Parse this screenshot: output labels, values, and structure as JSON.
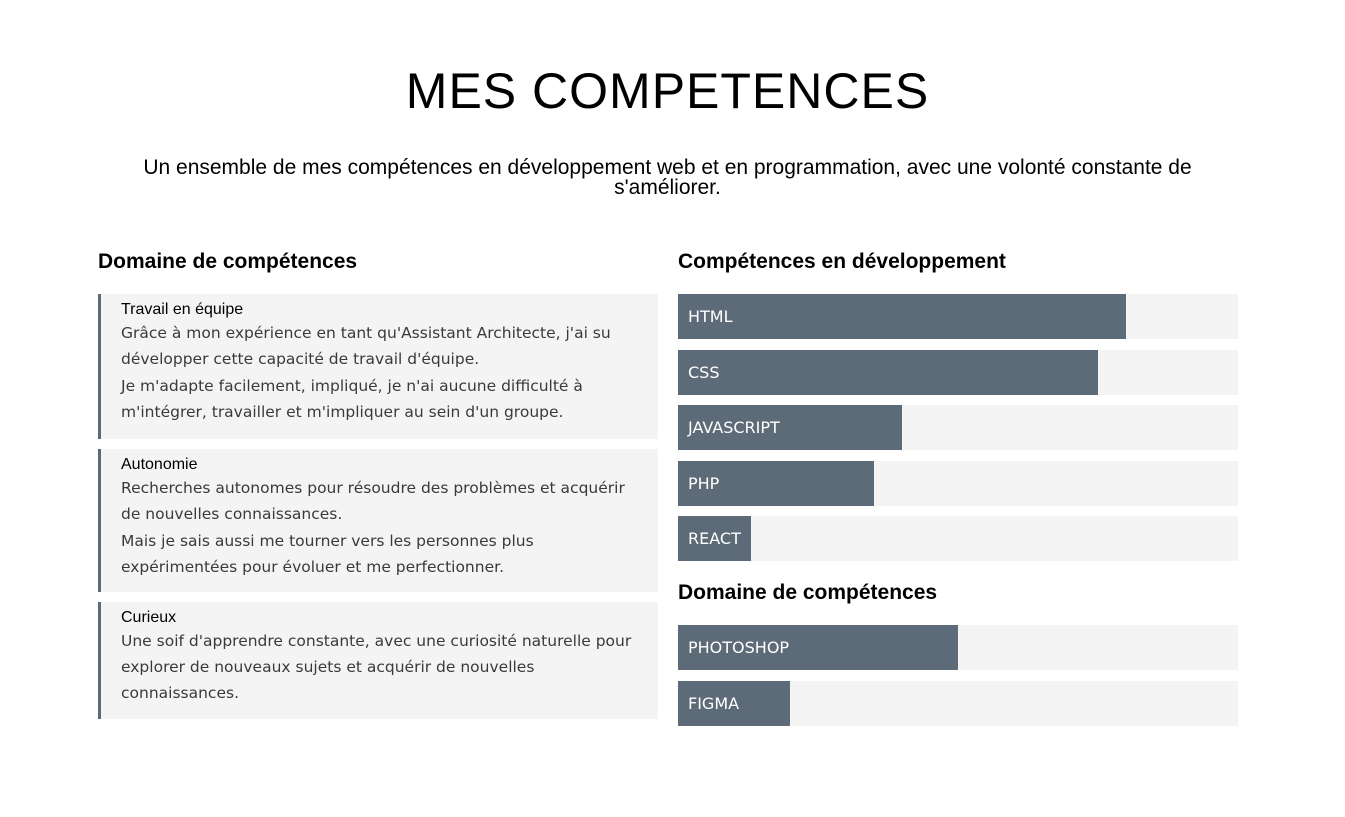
{
  "header": {
    "title": "MES COMPETENCES",
    "subtitle": "Un ensemble de mes compétences en développement web et en programmation, avec une volonté constante de s'améliorer."
  },
  "soft_skills": {
    "heading": "Domaine de compétences",
    "cards": [
      {
        "title": "Travail en équipe",
        "paragraphs": [
          "Grâce à mon expérience en tant qu'Assistant Architecte, j'ai su développer cette capacité de travail d'équipe.",
          "Je m'adapte facilement, impliqué, je n'ai aucune difficulté à m'intégrer, travailler et m'impliquer au sein d'un groupe."
        ]
      },
      {
        "title": "Autonomie",
        "paragraphs": [
          "Recherches autonomes pour résoudre des problèmes et acquérir de nouvelles connaissances.",
          "Mais je sais aussi me tourner vers les personnes plus expérimentées pour évoluer et me perfectionner."
        ]
      },
      {
        "title": "Curieux",
        "paragraphs": [
          "Une soif d'apprendre constante, avec une curiosité naturelle pour explorer de nouveaux sujets et acquérir de nouvelles connaissances."
        ]
      }
    ]
  },
  "dev_skills": {
    "heading": "Compétences en développement",
    "bars": [
      {
        "label": "HTML",
        "level": 0.8
      },
      {
        "label": "CSS",
        "level": 0.75
      },
      {
        "label": "JAVASCRIPT",
        "level": 0.4
      },
      {
        "label": "PHP",
        "level": 0.35
      },
      {
        "label": "REACT",
        "level": 0.13
      }
    ]
  },
  "design_skills": {
    "heading": "Domaine de compétences",
    "bars": [
      {
        "label": "PHOTOSHOP",
        "level": 0.5
      },
      {
        "label": "FIGMA",
        "level": 0.2
      }
    ]
  },
  "colors": {
    "bar_fill": "#5d6b78",
    "bar_track": "#f4f4f4",
    "card_background": "#f4f4f4",
    "card_accent": "#5d6b78"
  }
}
